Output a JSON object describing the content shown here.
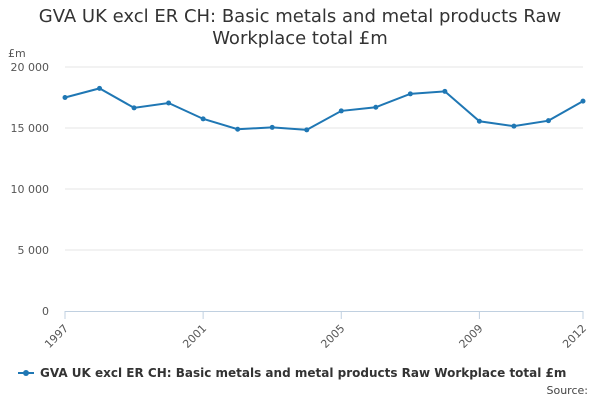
{
  "chart_data": {
    "type": "line",
    "title_line1": "GVA UK excl ER CH: Basic metals and metal products Raw",
    "title_line2": "Workplace total £m",
    "unit_label": "£m",
    "x": [
      1997,
      1998,
      1999,
      2000,
      2001,
      2002,
      2003,
      2004,
      2005,
      2006,
      2007,
      2008,
      2009,
      2010,
      2011,
      2012
    ],
    "x_tick_labels": [
      "1997",
      "2001",
      "2005",
      "2009",
      "2012"
    ],
    "x_tick_values": [
      1997,
      2001,
      2005,
      2009,
      2012
    ],
    "xlim": [
      1997,
      2012
    ],
    "y_tick_labels": [
      "0",
      "5 000",
      "10 000",
      "15 000",
      "20 000"
    ],
    "y_tick_values": [
      0,
      5000,
      10000,
      15000,
      20000
    ],
    "ylim": [
      0,
      20000
    ],
    "grid": true,
    "series": [
      {
        "name": "GVA UK excl ER CH: Basic metals and metal products Raw Workplace total £m",
        "color": "#1f77b4",
        "values": [
          17500,
          18250,
          16650,
          17050,
          15750,
          14900,
          15050,
          14850,
          16400,
          16700,
          17800,
          18000,
          15550,
          15150,
          15600,
          17200
        ]
      }
    ],
    "legend_position": "bottom-left",
    "source_label": "Source:"
  }
}
